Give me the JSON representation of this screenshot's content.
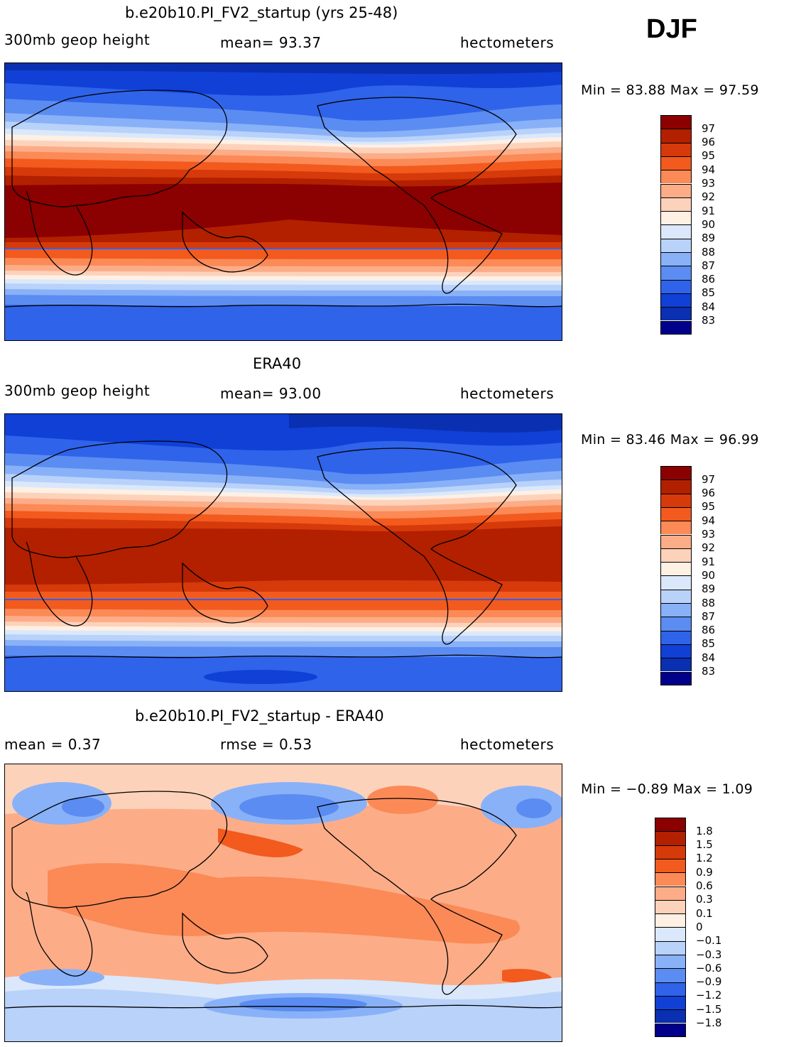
{
  "season": "DJF",
  "panels": [
    {
      "title": "b.e20b10.PI_FV2_startup (yrs 25-48)",
      "left_label": "300mb geop height",
      "center_label": "mean=   93.37",
      "right_label": "hectometers",
      "minmax_label": "Min =   83.88 Max =   97.59",
      "legend_labels": [
        "97",
        "96",
        "95",
        "94",
        "93",
        "92",
        "91",
        "90",
        "89",
        "88",
        "87",
        "86",
        "85",
        "84",
        "83"
      ],
      "legend_colors": [
        "#8b0000",
        "#b22000",
        "#d63a0a",
        "#f25a1e",
        "#fb8a57",
        "#fcad88",
        "#fdd2bb",
        "#fff0e4",
        "#dbe8fb",
        "#b9d2fa",
        "#89b1f8",
        "#5b8cf2",
        "#2f63ea",
        "#1040d6",
        "#0a2fb0",
        "#00008b"
      ]
    },
    {
      "title": "ERA40",
      "left_label": "300mb geop height",
      "center_label": "mean=   93.00",
      "right_label": "hectometers",
      "minmax_label": "Min =   83.46 Max =   96.99",
      "legend_labels": [
        "97",
        "96",
        "95",
        "94",
        "93",
        "92",
        "91",
        "90",
        "89",
        "88",
        "87",
        "86",
        "85",
        "84",
        "83"
      ],
      "legend_colors": [
        "#8b0000",
        "#b22000",
        "#d63a0a",
        "#f25a1e",
        "#fb8a57",
        "#fcad88",
        "#fdd2bb",
        "#fff0e4",
        "#dbe8fb",
        "#b9d2fa",
        "#89b1f8",
        "#5b8cf2",
        "#2f63ea",
        "#1040d6",
        "#0a2fb0",
        "#00008b"
      ]
    },
    {
      "title": "b.e20b10.PI_FV2_startup - ERA40",
      "left_label": "mean =     0.37",
      "center_label": "rmse =     0.53",
      "right_label": "hectometers",
      "minmax_label": "Min =   −0.89 Max =     1.09",
      "legend_labels": [
        "1.8",
        "1.5",
        "1.2",
        "0.9",
        "0.6",
        "0.3",
        "0.1",
        "0",
        "−0.1",
        "−0.3",
        "−0.6",
        "−0.9",
        "−1.2",
        "−1.5",
        "−1.8"
      ],
      "legend_colors": [
        "#8b0000",
        "#b22000",
        "#d63a0a",
        "#f25a1e",
        "#fb8a57",
        "#fcad88",
        "#fdd2bb",
        "#fff0e4",
        "#dbe8fb",
        "#b9d2fa",
        "#89b1f8",
        "#5b8cf2",
        "#2f63ea",
        "#1040d6",
        "#0a2fb0",
        "#00008b"
      ]
    }
  ]
}
